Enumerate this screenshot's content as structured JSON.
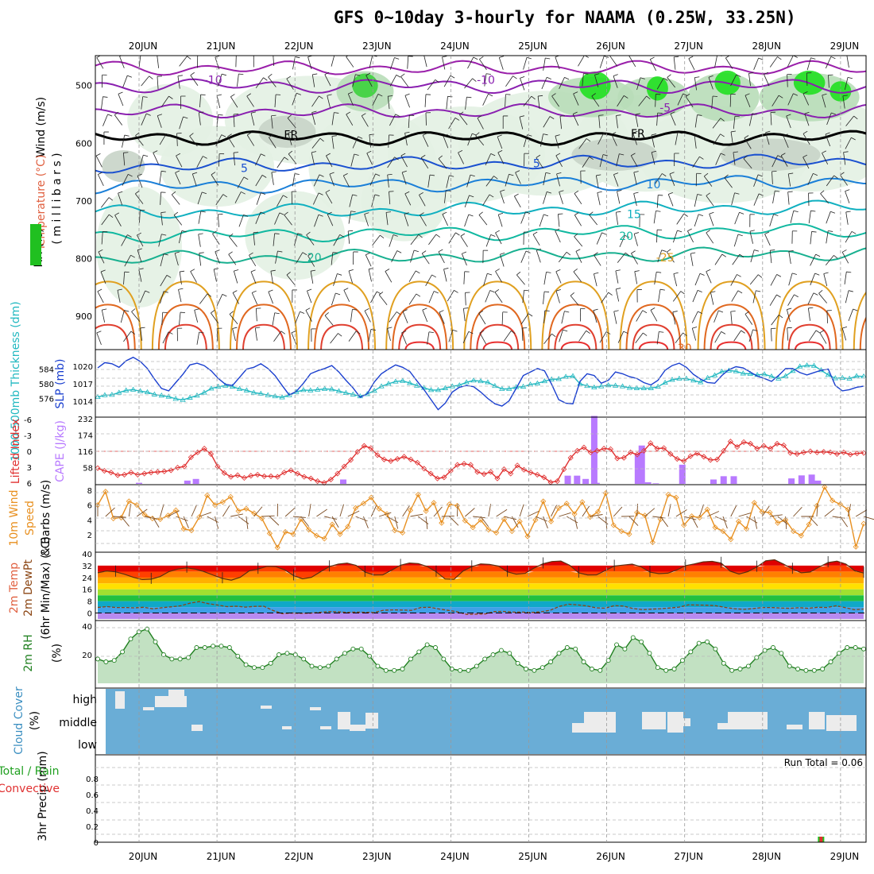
{
  "title": "GFS 0~10day 3-hourly for NAAMA (0.25W, 33.25N)",
  "dates": [
    "20JUN",
    "21JUN",
    "22JUN",
    "23JUN",
    "24JUN",
    "25JUN",
    "26JUN",
    "27JUN",
    "28JUN",
    "29JUN"
  ],
  "run_total": "Run Total = 0.06",
  "panel_labels": {
    "wind": "Wind (m/s)",
    "temperature": "Temperature (°C)",
    "rh": "RH (%)",
    "millibars": "( m i l l i b a r s )",
    "thickness": "1000-500mb Thickness (dm)",
    "slp": "SLP (mb)",
    "lifted_index": "Lifted Index",
    "cape": "CAPE (J/kg)",
    "wind10": "10m Wind",
    "speed": "Speed",
    "barbs": "& Barbs (m/s)",
    "temp2m": "2m Temp",
    "dewpt2m": "2m DewPt",
    "minmax": "(6hr Min/Max) (°C)",
    "rh2m": "2m RH",
    "rh2m_unit": "(%)",
    "cloud": "Cloud Cover",
    "cloud_unit": "(%)",
    "precip": "3hr Precip (mm)",
    "total_rain": "Total / Rain",
    "convective": "Convective"
  },
  "colors": {
    "slp": "#1a3fcf",
    "thickness": "#20b8c0",
    "lifted_index": "#e03030",
    "cape": "#b87aff",
    "wind_speed": "#e89020",
    "rh2m": "#208020",
    "cloud_bg": "#6aadd6",
    "cloud_fill": "#ececec"
  },
  "chart_data": [
    {
      "type": "line",
      "title": "Upper-air cross section",
      "ylabel": "millibars",
      "y_ticks": [
        500,
        600,
        700,
        800,
        900
      ],
      "ylim": [
        1000,
        450
      ],
      "isotherms_c": [
        -10,
        -5,
        0,
        5,
        10,
        15,
        20,
        25,
        30
      ],
      "isotherm_labels": [
        "-10",
        "-10",
        "-5",
        "FR",
        "FR",
        "5",
        "5",
        "10",
        "15",
        "20",
        "20",
        "-25",
        "30"
      ],
      "isotherm_label_positions": "approximate",
      "fields": [
        "Wind (m/s)",
        "Temperature (°C)",
        "RH (%)"
      ]
    },
    {
      "type": "line",
      "title": "SLP & 1000-500mb thickness",
      "slp_ticks": [
        1014,
        1017,
        1020
      ],
      "thickness_ticks": [
        576,
        580,
        584
      ],
      "slp_ylim": [
        1012,
        1022
      ],
      "thickness_ylim": [
        572,
        588
      ],
      "series": [
        {
          "name": "SLP (mb)",
          "values": [
            1019.7,
            1020.6,
            1020.4,
            1019.8,
            1020.9,
            1021.5,
            1020.8,
            1019.6,
            1017.8,
            1016.2,
            1015.8,
            1017.2,
            1018.6,
            1020.2,
            1020.5,
            1020.1,
            1019.2,
            1017.9,
            1016.9,
            1016.7,
            1018.1,
            1019.5,
            1019.8,
            1020.4,
            1019.6,
            1018.4,
            1016.7,
            1015.1,
            1015.7,
            1017.1,
            1018.7,
            1019.2,
            1019.6,
            1020.1,
            1019.0,
            1017.6,
            1016.3,
            1014.7,
            1015.3,
            1017.3,
            1018.7,
            1019.5,
            1020.2,
            1019.8,
            1019.1,
            1017.5,
            1016.0,
            1014.3,
            1012.6,
            1013.7,
            1015.6,
            1016.4,
            1016.7,
            1016.5,
            1015.6,
            1014.5,
            1013.6,
            1013.2,
            1014.1,
            1016.2,
            1018.4,
            1019.0,
            1019.6,
            1019.2,
            1016.9,
            1014.3,
            1013.7,
            1013.6,
            1017.4,
            1018.7,
            1018.4,
            1017.1,
            1017.6,
            1019.0,
            1018.7,
            1018.2,
            1017.9,
            1017.2,
            1016.8,
            1017.6,
            1019.3,
            1020.1,
            1020.5,
            1019.8,
            1018.6,
            1017.8,
            1017.2,
            1017.1,
            1018.4,
            1019.4,
            1019.9,
            1019.7,
            1019.0,
            1018.3,
            1017.9,
            1017.4,
            1018.4,
            1019.6,
            1019.6,
            1018.9,
            1018.5,
            1018.9,
            1019.3,
            1019.5,
            1016.7,
            1015.8,
            1016.0,
            1016.4,
            1016.6
          ]
        },
        {
          "name": "1000-500mb Thickness (dm)",
          "values": [
            576.4,
            576.9,
            577.0,
            577.6,
            578.2,
            578.4,
            578.0,
            577.7,
            577.1,
            576.8,
            576.5,
            575.9,
            575.6,
            576.2,
            576.8,
            577.6,
            578.7,
            579.2,
            579.5,
            579.2,
            578.6,
            578.2,
            577.6,
            577.3,
            576.9,
            576.6,
            576.3,
            576.9,
            577.8,
            578.3,
            578.2,
            578.4,
            578.6,
            578.5,
            578.0,
            577.5,
            577.1,
            576.6,
            577.2,
            578.1,
            579.3,
            580.0,
            580.6,
            580.8,
            580.2,
            579.5,
            578.9,
            578.3,
            578.3,
            578.8,
            579.3,
            579.6,
            580.4,
            580.9,
            580.7,
            580.4,
            579.4,
            578.6,
            578.6,
            579.1,
            579.2,
            579.8,
            580.1,
            580.7,
            581.2,
            581.3,
            581.9,
            582.1,
            580.0,
            579.4,
            579.0,
            579.3,
            579.6,
            579.5,
            579.3,
            578.9,
            578.8,
            578.8,
            578.8,
            579.2,
            580.3,
            581.1,
            581.4,
            581.4,
            580.9,
            580.4,
            581.6,
            582.3,
            583.3,
            583.6,
            583.4,
            582.8,
            582.7,
            582.4,
            582.6,
            582.0,
            581.4,
            582.1,
            583.5,
            584.7,
            585.0,
            584.9,
            583.7,
            582.4,
            581.5,
            581.6,
            581.4,
            582.1,
            582.0
          ]
        }
      ]
    },
    {
      "type": "bar",
      "title": "Lifted Index & CAPE",
      "lifted_index_ticks": [
        -6,
        -3,
        0,
        3,
        6
      ],
      "cape_ticks": [
        58,
        116,
        174,
        232
      ],
      "cape_ylim": [
        0,
        232
      ],
      "series": [
        {
          "name": "Lifted Index",
          "values": [
            3.1,
            3.6,
            3.9,
            4.4,
            4.3,
            3.9,
            4.3,
            4.1,
            3.9,
            3.8,
            3.7,
            3.5,
            3.0,
            2.8,
            1.1,
            0.2,
            -0.5,
            0.5,
            2.8,
            4.0,
            4.7,
            4.4,
            4.9,
            4.5,
            4.3,
            4.6,
            4.6,
            4.7,
            3.9,
            3.5,
            4.1,
            4.7,
            5.0,
            5.5,
            5.8,
            5.2,
            4.1,
            2.8,
            1.6,
            0.1,
            -1.0,
            -0.6,
            0.7,
            1.5,
            1.8,
            1.4,
            1.0,
            1.5,
            2.1,
            3.2,
            4.1,
            5.0,
            4.8,
            3.6,
            2.5,
            2.3,
            2.5,
            3.8,
            4.2,
            3.8,
            5.0,
            3.3,
            4.1,
            2.6,
            3.4,
            3.9,
            4.3,
            4.8,
            5.7,
            5.5,
            3.3,
            1.2,
            -0.1,
            -0.7,
            0.2,
            -0.1,
            -0.5,
            -0.4,
            1.3,
            1.2,
            0.2,
            0.6,
            -0.1,
            -1.5,
            -0.5,
            -0.6,
            0.5,
            1.4,
            1.8,
            0.9,
            0.4,
            1.0,
            1.6,
            1.5,
            -0.1,
            -1.8,
            -0.8,
            -1.7,
            -1.4,
            -0.5,
            -1.0,
            -0.5,
            -1.4,
            -1.1,
            0.3,
            0.5,
            0.2,
            0.0,
            0.2,
            0.1,
            0.2,
            0.5,
            0.2,
            0.6,
            0.4,
            0.3
          ]
        },
        {
          "name": "CAPE (J/kg)",
          "times_day": [
            0.0,
            0.62,
            0.73,
            2.62,
            5.5,
            5.62,
            5.73,
            5.84,
            5.87,
            6.4,
            6.45,
            6.53,
            6.63,
            6.97,
            7.37,
            7.5,
            7.63,
            8.37,
            8.5,
            8.63,
            8.71
          ],
          "values": [
            4,
            12,
            18,
            16,
            30,
            30,
            18,
            248,
            4,
            110,
            140,
            6,
            2,
            70,
            16,
            28,
            28,
            20,
            31,
            34,
            12
          ]
        }
      ]
    },
    {
      "type": "line",
      "title": "10m Wind Speed & Barbs",
      "ylabel": "(m/s)",
      "ylim": [
        0,
        8
      ],
      "y_ticks": [
        2,
        4,
        6,
        8
      ],
      "series": [
        {
          "name": "Speed",
          "values": [
            6.0,
            7.8,
            4.2,
            4.3,
            6.5,
            6.0,
            4.7,
            4.2,
            4.1,
            4.6,
            5.3,
            2.8,
            2.6,
            4.4,
            7.3,
            6.0,
            6.4,
            7.1,
            5.2,
            5.5,
            4.9,
            4.2,
            2.2,
            0.3,
            2.4,
            2.1,
            4.1,
            2.7,
            1.9,
            1.5,
            3.4,
            2.1,
            3.1,
            5.6,
            6.2,
            7.0,
            5.5,
            4.8,
            2.6,
            2.3,
            5.3,
            7.4,
            5.2,
            6.3,
            3.6,
            6.1,
            5.9,
            3.9,
            3.0,
            4.0,
            2.7,
            2.3,
            4.1,
            2.5,
            3.8,
            1.8,
            4.0,
            6.5,
            3.8,
            5.6,
            6.2,
            4.8,
            6.4,
            4.4,
            5.1,
            7.6,
            3.3,
            2.5,
            2.1,
            5.0,
            4.6,
            1.0,
            4.1,
            7.4,
            7.0,
            3.3,
            4.5,
            4.3,
            5.4,
            3.0,
            2.5,
            1.4,
            3.8,
            2.8,
            6.3,
            5.1,
            5.0,
            3.6,
            4.0,
            2.5,
            1.9,
            3.4,
            5.9,
            8.4,
            6.6,
            6.1,
            5.4,
            0.4,
            3.5
          ]
        }
      ]
    },
    {
      "type": "area",
      "title": "2m Temp & DewPt",
      "ylabel": "(°C)",
      "ylim": [
        -4,
        40
      ],
      "y_ticks": [
        0,
        8,
        16,
        24,
        32,
        40
      ],
      "series": [
        {
          "name": "2m Temp",
          "values": [
            27.2,
            28.4,
            27.8,
            26.2,
            24.1,
            22.6,
            22.9,
            24.6,
            28.0,
            29.7,
            30.5,
            29.6,
            27.8,
            25.5,
            23.3,
            22.2,
            24.1,
            28.4,
            29.7,
            31.5,
            31.3,
            29.1,
            25.3,
            23.1,
            24.1,
            27.8,
            31.3,
            33.0,
            33.7,
            32.2,
            27.7,
            25.7,
            25.8,
            28.9,
            32.3,
            33.8,
            33.4,
            31.4,
            27.8,
            23.0,
            22.7,
            28.3,
            31.3,
            33.2,
            32.8,
            31.7,
            27.8,
            26.2,
            26.8,
            30.4,
            33.3,
            34.8,
            35.1,
            32.2,
            27.1,
            25.7,
            25.8,
            28.7,
            31.7,
            32.4,
            33.0,
            31.2,
            27.6,
            26.6,
            26.9,
            29.0,
            32.0,
            33.2,
            34.6,
            34.9,
            33.7,
            28.3,
            26.3,
            28.0,
            31.1,
            35.3,
            36.0,
            33.1,
            29.7,
            27.2,
            27.7,
            31.1,
            34.1,
            35.0,
            33.1,
            28.5,
            27.0
          ]
        },
        {
          "name": "2m DewPt",
          "values": [
            3.8,
            4.3,
            3.7,
            3.7,
            3.5,
            3.9,
            2.8,
            3.6,
            4.2,
            4.9,
            6.7,
            7.7,
            6.3,
            5.4,
            4.3,
            4.6,
            4.0,
            4.5,
            4.6,
            1.7,
            -0.4,
            0.0,
            -0.2,
            -0.1,
            0.4,
            1.0,
            0.9,
            0.4,
            0.6,
            0.5,
            0.5,
            1.9,
            2.1,
            2.0,
            1.8,
            3.7,
            3.9,
            2.7,
            1.8,
            0.8,
            -1.0,
            -0.8,
            -0.6,
            1.0,
            1.1,
            0.6,
            0.6,
            0.4,
            0.8,
            1.8,
            4.4,
            6.0,
            5.5,
            4.8,
            3.5,
            3.3,
            5.0,
            4.7,
            3.1,
            2.3,
            2.6,
            2.9,
            3.4,
            4.0,
            5.5,
            5.4,
            5.3,
            4.9,
            3.8,
            2.9,
            2.5,
            3.0,
            3.7,
            3.7,
            3.4,
            3.2,
            3.6,
            3.2,
            3.9,
            3.7,
            4.9,
            3.6,
            2.2,
            2.7
          ]
        }
      ]
    },
    {
      "type": "line",
      "title": "2m RH",
      "ylabel": "(%)",
      "ylim": [
        0,
        40
      ],
      "y_ticks": [
        20,
        40
      ],
      "series": [
        {
          "name": "2m RH",
          "values": [
            17,
            15,
            16,
            22,
            31,
            36,
            38,
            29,
            20,
            17,
            17,
            18,
            25,
            25,
            26,
            26,
            25,
            19,
            13,
            11,
            11,
            14,
            20,
            21,
            20,
            17,
            12,
            11,
            12,
            17,
            21,
            24,
            24,
            19,
            12,
            9,
            9,
            10,
            17,
            22,
            27,
            25,
            17,
            10,
            9,
            9,
            12,
            17,
            20,
            23,
            21,
            14,
            10,
            9,
            11,
            15,
            21,
            25,
            24,
            15,
            10,
            9,
            16,
            27,
            24,
            32,
            29,
            21,
            11,
            9,
            10,
            16,
            22,
            28,
            29,
            24,
            14,
            9,
            10,
            12,
            18,
            23,
            25,
            21,
            12,
            10,
            9,
            9,
            10,
            15,
            21,
            25,
            25,
            24
          ]
        }
      ]
    },
    {
      "type": "bar",
      "title": "Cloud Cover",
      "ylabel": "(%)",
      "categories": [
        "high",
        "middle",
        "low"
      ]
    },
    {
      "type": "bar",
      "title": "3hr Precip",
      "ylabel": "3hr Precip (mm)",
      "ylim": [
        0,
        1.0
      ],
      "y_ticks": [
        0,
        0.2,
        0.4,
        0.6,
        0.8
      ],
      "series": [
        {
          "name": "Total / Rain",
          "times_day": [
            8.75
          ],
          "values": [
            0.06
          ]
        },
        {
          "name": "Convective",
          "times_day": [
            8.75
          ],
          "values": [
            0.04
          ]
        }
      ]
    }
  ]
}
